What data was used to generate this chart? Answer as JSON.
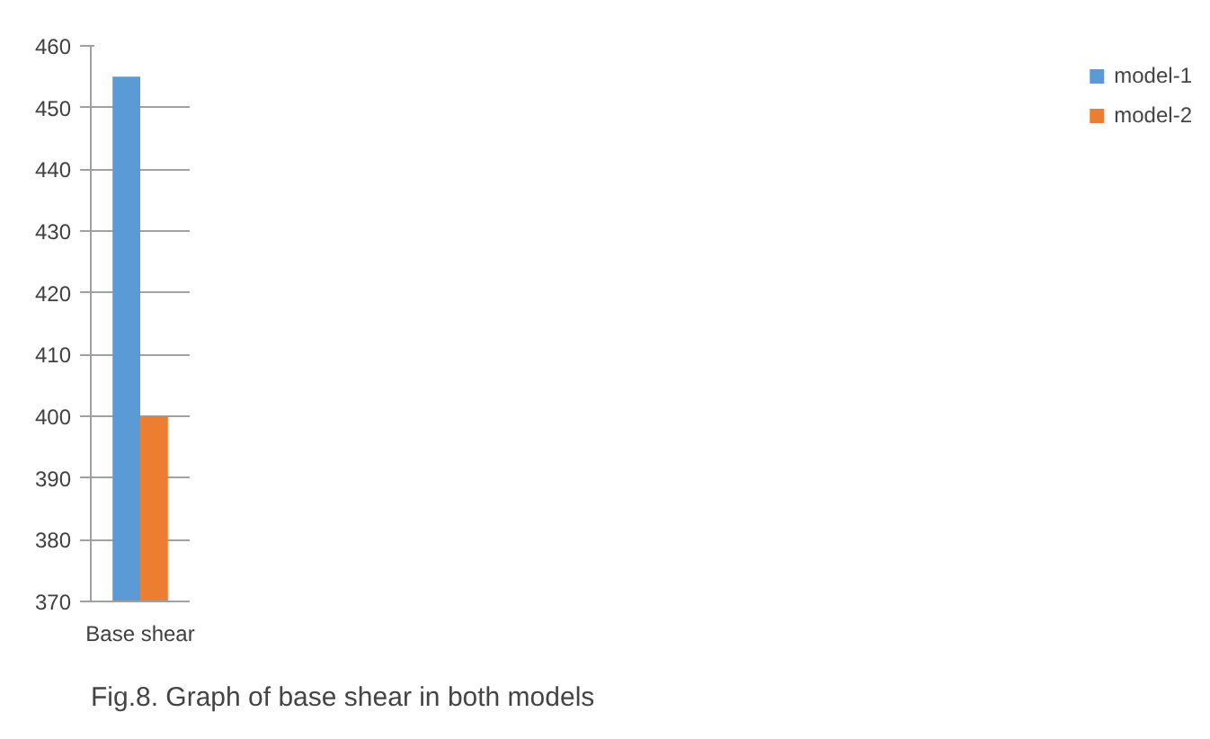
{
  "chart_data": {
    "type": "bar",
    "categories": [
      "Base shear"
    ],
    "series": [
      {
        "name": "model-1",
        "color": "#5b9bd5",
        "values": [
          455
        ]
      },
      {
        "name": "model-2",
        "color": "#ed7d31",
        "values": [
          400
        ]
      }
    ],
    "ylim": [
      370,
      460
    ],
    "yticks": [
      370,
      380,
      390,
      400,
      410,
      420,
      430,
      440,
      450,
      460
    ],
    "grid": "y",
    "legend": "right",
    "annotations": [
      "Fig.8. Graph of base shear in both models"
    ]
  }
}
